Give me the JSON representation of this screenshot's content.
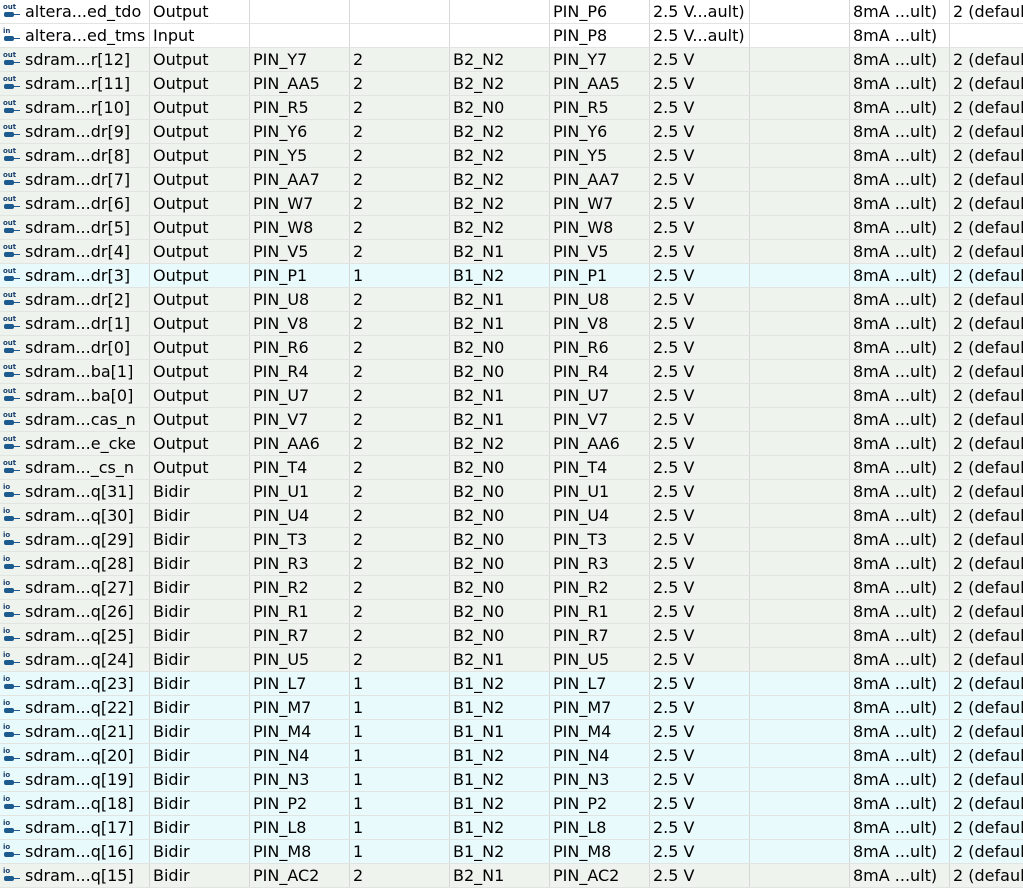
{
  "rows": [
    {
      "icon": "output",
      "name": "altera...ed_tdo",
      "dir": "Output",
      "loc": "",
      "bank": "",
      "vref": "",
      "fit": "PIN_P6",
      "std": "2.5 V...ault)",
      "res": "",
      "cur": "8mA ...ult)",
      "slew": "2 (defaul"
    },
    {
      "icon": "input",
      "name": "altera...ed_tms",
      "dir": "Input",
      "loc": "",
      "bank": "",
      "vref": "",
      "fit": "PIN_P8",
      "std": "2.5 V...ault)",
      "res": "",
      "cur": "8mA ...ult)",
      "slew": ""
    },
    {
      "icon": "output",
      "name": "sdram...r[12]",
      "dir": "Output",
      "loc": "PIN_Y7",
      "bank": "2",
      "vref": "B2_N2",
      "fit": "PIN_Y7",
      "std": "2.5 V",
      "res": "",
      "cur": "8mA ...ult)",
      "slew": "2 (defaul"
    },
    {
      "icon": "output",
      "name": "sdram...r[11]",
      "dir": "Output",
      "loc": "PIN_AA5",
      "bank": "2",
      "vref": "B2_N2",
      "fit": "PIN_AA5",
      "std": "2.5 V",
      "res": "",
      "cur": "8mA ...ult)",
      "slew": "2 (defaul"
    },
    {
      "icon": "output",
      "name": "sdram...r[10]",
      "dir": "Output",
      "loc": "PIN_R5",
      "bank": "2",
      "vref": "B2_N0",
      "fit": "PIN_R5",
      "std": "2.5 V",
      "res": "",
      "cur": "8mA ...ult)",
      "slew": "2 (defaul"
    },
    {
      "icon": "output",
      "name": "sdram...dr[9]",
      "dir": "Output",
      "loc": "PIN_Y6",
      "bank": "2",
      "vref": "B2_N2",
      "fit": "PIN_Y6",
      "std": "2.5 V",
      "res": "",
      "cur": "8mA ...ult)",
      "slew": "2 (defaul"
    },
    {
      "icon": "output",
      "name": "sdram...dr[8]",
      "dir": "Output",
      "loc": "PIN_Y5",
      "bank": "2",
      "vref": "B2_N2",
      "fit": "PIN_Y5",
      "std": "2.5 V",
      "res": "",
      "cur": "8mA ...ult)",
      "slew": "2 (defaul"
    },
    {
      "icon": "output",
      "name": "sdram...dr[7]",
      "dir": "Output",
      "loc": "PIN_AA7",
      "bank": "2",
      "vref": "B2_N2",
      "fit": "PIN_AA7",
      "std": "2.5 V",
      "res": "",
      "cur": "8mA ...ult)",
      "slew": "2 (defaul"
    },
    {
      "icon": "output",
      "name": "sdram...dr[6]",
      "dir": "Output",
      "loc": "PIN_W7",
      "bank": "2",
      "vref": "B2_N2",
      "fit": "PIN_W7",
      "std": "2.5 V",
      "res": "",
      "cur": "8mA ...ult)",
      "slew": "2 (defaul"
    },
    {
      "icon": "output",
      "name": "sdram...dr[5]",
      "dir": "Output",
      "loc": "PIN_W8",
      "bank": "2",
      "vref": "B2_N2",
      "fit": "PIN_W8",
      "std": "2.5 V",
      "res": "",
      "cur": "8mA ...ult)",
      "slew": "2 (defaul"
    },
    {
      "icon": "output",
      "name": "sdram...dr[4]",
      "dir": "Output",
      "loc": "PIN_V5",
      "bank": "2",
      "vref": "B2_N1",
      "fit": "PIN_V5",
      "std": "2.5 V",
      "res": "",
      "cur": "8mA ...ult)",
      "slew": "2 (defaul"
    },
    {
      "icon": "output",
      "name": "sdram...dr[3]",
      "dir": "Output",
      "loc": "PIN_P1",
      "bank": "1",
      "vref": "B1_N2",
      "fit": "PIN_P1",
      "std": "2.5 V",
      "res": "",
      "cur": "8mA ...ult)",
      "slew": "2 (defaul"
    },
    {
      "icon": "output",
      "name": "sdram...dr[2]",
      "dir": "Output",
      "loc": "PIN_U8",
      "bank": "2",
      "vref": "B2_N1",
      "fit": "PIN_U8",
      "std": "2.5 V",
      "res": "",
      "cur": "8mA ...ult)",
      "slew": "2 (defaul"
    },
    {
      "icon": "output",
      "name": "sdram...dr[1]",
      "dir": "Output",
      "loc": "PIN_V8",
      "bank": "2",
      "vref": "B2_N1",
      "fit": "PIN_V8",
      "std": "2.5 V",
      "res": "",
      "cur": "8mA ...ult)",
      "slew": "2 (defaul"
    },
    {
      "icon": "output",
      "name": "sdram...dr[0]",
      "dir": "Output",
      "loc": "PIN_R6",
      "bank": "2",
      "vref": "B2_N0",
      "fit": "PIN_R6",
      "std": "2.5 V",
      "res": "",
      "cur": "8mA ...ult)",
      "slew": "2 (defaul"
    },
    {
      "icon": "output",
      "name": "sdram...ba[1]",
      "dir": "Output",
      "loc": "PIN_R4",
      "bank": "2",
      "vref": "B2_N0",
      "fit": "PIN_R4",
      "std": "2.5 V",
      "res": "",
      "cur": "8mA ...ult)",
      "slew": "2 (defaul"
    },
    {
      "icon": "output",
      "name": "sdram...ba[0]",
      "dir": "Output",
      "loc": "PIN_U7",
      "bank": "2",
      "vref": "B2_N1",
      "fit": "PIN_U7",
      "std": "2.5 V",
      "res": "",
      "cur": "8mA ...ult)",
      "slew": "2 (defaul"
    },
    {
      "icon": "output",
      "name": "sdram...cas_n",
      "dir": "Output",
      "loc": "PIN_V7",
      "bank": "2",
      "vref": "B2_N1",
      "fit": "PIN_V7",
      "std": "2.5 V",
      "res": "",
      "cur": "8mA ...ult)",
      "slew": "2 (defaul"
    },
    {
      "icon": "output",
      "name": "sdram...e_cke",
      "dir": "Output",
      "loc": "PIN_AA6",
      "bank": "2",
      "vref": "B2_N2",
      "fit": "PIN_AA6",
      "std": "2.5 V",
      "res": "",
      "cur": "8mA ...ult)",
      "slew": "2 (defaul"
    },
    {
      "icon": "output",
      "name": "sdram..._cs_n",
      "dir": "Output",
      "loc": "PIN_T4",
      "bank": "2",
      "vref": "B2_N0",
      "fit": "PIN_T4",
      "std": "2.5 V",
      "res": "",
      "cur": "8mA ...ult)",
      "slew": "2 (defaul"
    },
    {
      "icon": "bidir",
      "name": "sdram...q[31]",
      "dir": "Bidir",
      "loc": "PIN_U1",
      "bank": "2",
      "vref": "B2_N0",
      "fit": "PIN_U1",
      "std": "2.5 V",
      "res": "",
      "cur": "8mA ...ult)",
      "slew": "2 (defaul"
    },
    {
      "icon": "bidir",
      "name": "sdram...q[30]",
      "dir": "Bidir",
      "loc": "PIN_U4",
      "bank": "2",
      "vref": "B2_N0",
      "fit": "PIN_U4",
      "std": "2.5 V",
      "res": "",
      "cur": "8mA ...ult)",
      "slew": "2 (defaul"
    },
    {
      "icon": "bidir",
      "name": "sdram...q[29]",
      "dir": "Bidir",
      "loc": "PIN_T3",
      "bank": "2",
      "vref": "B2_N0",
      "fit": "PIN_T3",
      "std": "2.5 V",
      "res": "",
      "cur": "8mA ...ult)",
      "slew": "2 (defaul"
    },
    {
      "icon": "bidir",
      "name": "sdram...q[28]",
      "dir": "Bidir",
      "loc": "PIN_R3",
      "bank": "2",
      "vref": "B2_N0",
      "fit": "PIN_R3",
      "std": "2.5 V",
      "res": "",
      "cur": "8mA ...ult)",
      "slew": "2 (defaul"
    },
    {
      "icon": "bidir",
      "name": "sdram...q[27]",
      "dir": "Bidir",
      "loc": "PIN_R2",
      "bank": "2",
      "vref": "B2_N0",
      "fit": "PIN_R2",
      "std": "2.5 V",
      "res": "",
      "cur": "8mA ...ult)",
      "slew": "2 (defaul"
    },
    {
      "icon": "bidir",
      "name": "sdram...q[26]",
      "dir": "Bidir",
      "loc": "PIN_R1",
      "bank": "2",
      "vref": "B2_N0",
      "fit": "PIN_R1",
      "std": "2.5 V",
      "res": "",
      "cur": "8mA ...ult)",
      "slew": "2 (defaul"
    },
    {
      "icon": "bidir",
      "name": "sdram...q[25]",
      "dir": "Bidir",
      "loc": "PIN_R7",
      "bank": "2",
      "vref": "B2_N0",
      "fit": "PIN_R7",
      "std": "2.5 V",
      "res": "",
      "cur": "8mA ...ult)",
      "slew": "2 (defaul"
    },
    {
      "icon": "bidir",
      "name": "sdram...q[24]",
      "dir": "Bidir",
      "loc": "PIN_U5",
      "bank": "2",
      "vref": "B2_N1",
      "fit": "PIN_U5",
      "std": "2.5 V",
      "res": "",
      "cur": "8mA ...ult)",
      "slew": "2 (defaul"
    },
    {
      "icon": "bidir",
      "name": "sdram...q[23]",
      "dir": "Bidir",
      "loc": "PIN_L7",
      "bank": "1",
      "vref": "B1_N2",
      "fit": "PIN_L7",
      "std": "2.5 V",
      "res": "",
      "cur": "8mA ...ult)",
      "slew": "2 (defaul"
    },
    {
      "icon": "bidir",
      "name": "sdram...q[22]",
      "dir": "Bidir",
      "loc": "PIN_M7",
      "bank": "1",
      "vref": "B1_N2",
      "fit": "PIN_M7",
      "std": "2.5 V",
      "res": "",
      "cur": "8mA ...ult)",
      "slew": "2 (defaul"
    },
    {
      "icon": "bidir",
      "name": "sdram...q[21]",
      "dir": "Bidir",
      "loc": "PIN_M4",
      "bank": "1",
      "vref": "B1_N1",
      "fit": "PIN_M4",
      "std": "2.5 V",
      "res": "",
      "cur": "8mA ...ult)",
      "slew": "2 (defaul"
    },
    {
      "icon": "bidir",
      "name": "sdram...q[20]",
      "dir": "Bidir",
      "loc": "PIN_N4",
      "bank": "1",
      "vref": "B1_N2",
      "fit": "PIN_N4",
      "std": "2.5 V",
      "res": "",
      "cur": "8mA ...ult)",
      "slew": "2 (defaul"
    },
    {
      "icon": "bidir",
      "name": "sdram...q[19]",
      "dir": "Bidir",
      "loc": "PIN_N3",
      "bank": "1",
      "vref": "B1_N2",
      "fit": "PIN_N3",
      "std": "2.5 V",
      "res": "",
      "cur": "8mA ...ult)",
      "slew": "2 (defaul"
    },
    {
      "icon": "bidir",
      "name": "sdram...q[18]",
      "dir": "Bidir",
      "loc": "PIN_P2",
      "bank": "1",
      "vref": "B1_N2",
      "fit": "PIN_P2",
      "std": "2.5 V",
      "res": "",
      "cur": "8mA ...ult)",
      "slew": "2 (defaul"
    },
    {
      "icon": "bidir",
      "name": "sdram...q[17]",
      "dir": "Bidir",
      "loc": "PIN_L8",
      "bank": "1",
      "vref": "B1_N2",
      "fit": "PIN_L8",
      "std": "2.5 V",
      "res": "",
      "cur": "8mA ...ult)",
      "slew": "2 (defaul"
    },
    {
      "icon": "bidir",
      "name": "sdram...q[16]",
      "dir": "Bidir",
      "loc": "PIN_M8",
      "bank": "1",
      "vref": "B1_N2",
      "fit": "PIN_M8",
      "std": "2.5 V",
      "res": "",
      "cur": "8mA ...ult)",
      "slew": "2 (defaul"
    },
    {
      "icon": "bidir",
      "name": "sdram...q[15]",
      "dir": "Bidir",
      "loc": "PIN_AC2",
      "bank": "2",
      "vref": "B2_N1",
      "fit": "PIN_AC2",
      "std": "2.5 V",
      "res": "",
      "cur": "8mA ...ult)",
      "slew": "2 (defaul"
    }
  ],
  "icon_tags": {
    "output": "out",
    "input": "in",
    "bidir": "io"
  },
  "colors": {
    "row_white": "#ffffff",
    "row_bank2": "#eef3ee",
    "row_bank1": "#e8fafb",
    "pin_icon": "#1d5b8f",
    "grid_line": "#d6d8d6"
  }
}
